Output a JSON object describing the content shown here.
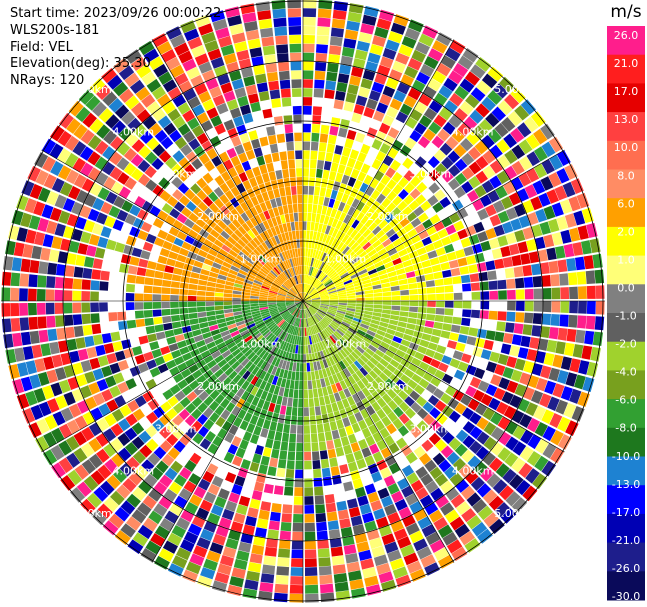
{
  "header": {
    "start_time": "Start time: 2023/09/26 00:00:22",
    "instrument": "WLS200s-181",
    "field": "Field: VEL",
    "elevation": "Elevation(deg): 35.30",
    "nrays": "NRays: 120"
  },
  "colorbar": {
    "unit": "m/s",
    "tick_labels": [
      "26.0",
      "21.0",
      "17.0",
      "13.0",
      "10.0",
      "8.0",
      "6.0",
      "2.0",
      "1.0",
      "0.0",
      "-1.0",
      "-2.0",
      "-4.0",
      "-6.0",
      "-8.0",
      "-10.0",
      "-13.0",
      "-17.0",
      "-21.0",
      "-26.0",
      "-30.0"
    ],
    "colors": [
      "#ff1e8c",
      "#ff1e1e",
      "#e60000",
      "#ff4040",
      "#ff6e50",
      "#ff8c64",
      "#ffa000",
      "#ffff00",
      "#ffff78",
      "#808080",
      "#606060",
      "#a0d22d",
      "#78a01e",
      "#32a032",
      "#1e781e",
      "#1e82d2",
      "#0000ff",
      "#0000b4",
      "#1e1e8c",
      "#0a0a5a"
    ]
  },
  "chart_data": {
    "type": "ppi",
    "field": "VEL",
    "units": "m/s",
    "n_rays": 120,
    "elevation_deg": 35.3,
    "value_range": [
      -30.0,
      26.0
    ],
    "range_ring_labels": [
      "1.00km",
      "2.00km",
      "3.00km",
      "4.00km",
      "5.00km"
    ],
    "rings_km": [
      1,
      2,
      3,
      4,
      5
    ],
    "sectors": [
      {
        "azimuth_deg": [
          270,
          360
        ],
        "range_km": [
          0,
          3.0
        ],
        "velocity_ms": 6.0,
        "color": "#ffa000"
      },
      {
        "azimuth_deg": [
          0,
          90
        ],
        "range_km": [
          0,
          3.0
        ],
        "velocity_ms": 2.0,
        "color": "#ffff00"
      },
      {
        "azimuth_deg": [
          90,
          180
        ],
        "range_km": [
          0,
          3.0
        ],
        "velocity_ms": -2.0,
        "color": "#a0d22d"
      },
      {
        "azimuth_deg": [
          180,
          270
        ],
        "range_km": [
          0,
          3.0
        ],
        "velocity_ms": -6.0,
        "color": "#32a032"
      }
    ],
    "noise_beyond_km": 3.4
  }
}
